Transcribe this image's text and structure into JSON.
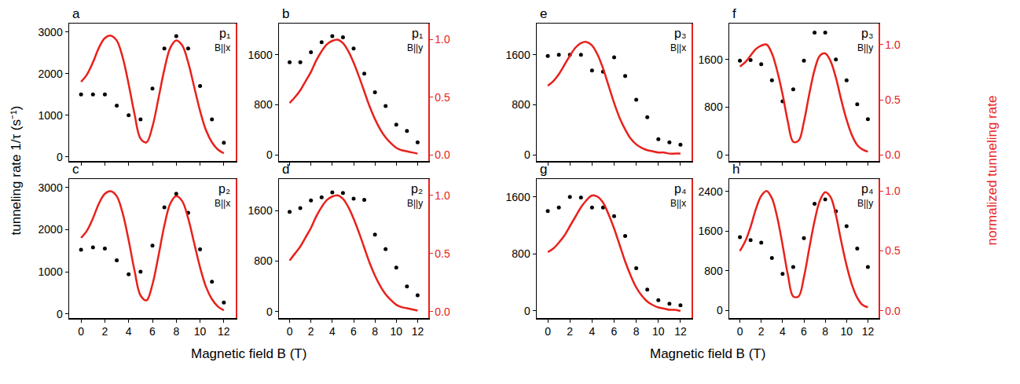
{
  "chart_data": [
    {
      "type": "scatter",
      "panel": "a",
      "title": "p₁",
      "subtitle": "B||x",
      "ylabel": "tunneling rate 1/τ (s⁻¹)",
      "grid": false,
      "tick_labels": "y",
      "xlim": [
        -1,
        13
      ],
      "xticks": [
        0,
        2,
        4,
        6,
        8,
        10,
        12
      ],
      "ylim": [
        -100,
        3200
      ],
      "yticks": [
        0,
        1000,
        2000,
        3000
      ],
      "y2lim": [
        -0.034,
        1.1
      ],
      "y2ticks": [],
      "series": [
        {
          "type": "scatter",
          "marker": "circle",
          "color": "#000000",
          "x": [
            0,
            1,
            2,
            3,
            4,
            5,
            6,
            7,
            8,
            9,
            10,
            11,
            12
          ],
          "values": [
            1500,
            1500,
            1500,
            1230,
            1000,
            900,
            1640,
            2600,
            2900,
            2600,
            1700,
            900,
            340
          ]
        },
        {
          "type": "line",
          "line_style": "solid",
          "color": "#e8211c",
          "axis": "y2",
          "x": [
            0,
            0.5,
            1,
            1.5,
            2,
            2.5,
            3,
            3.5,
            4,
            4.5,
            5,
            5.5,
            6,
            6.5,
            7,
            7.5,
            8,
            8.5,
            9,
            9.5,
            10,
            10.5,
            11,
            11.5,
            12
          ],
          "values": [
            0.62,
            0.68,
            0.78,
            0.9,
            0.98,
            1.0,
            0.96,
            0.82,
            0.6,
            0.35,
            0.15,
            0.12,
            0.25,
            0.48,
            0.72,
            0.9,
            0.96,
            0.92,
            0.78,
            0.58,
            0.38,
            0.22,
            0.12,
            0.06,
            0.03
          ]
        }
      ]
    },
    {
      "type": "scatter",
      "panel": "b",
      "title": "p₁",
      "subtitle": "B||y",
      "grid": false,
      "tick_labels": "y",
      "xlim": [
        -1,
        13
      ],
      "xticks": [
        0,
        2,
        4,
        6,
        8,
        10,
        12
      ],
      "ylim": [
        -100,
        2100
      ],
      "yticks": [
        0,
        800,
        1600
      ],
      "y2lim": [
        -0.054,
        1.14
      ],
      "y2ticks": [
        {
          "value": 0,
          "label": "0.0"
        },
        0.5,
        {
          "value": 1,
          "label": "1.0"
        }
      ],
      "series": [
        {
          "type": "scatter",
          "marker": "circle",
          "color": "#000000",
          "x": [
            0,
            1,
            2,
            3,
            4,
            5,
            6,
            7,
            8,
            9,
            10,
            11,
            12
          ],
          "values": [
            1480,
            1480,
            1640,
            1800,
            1900,
            1880,
            1700,
            1300,
            1000,
            780,
            480,
            380,
            200
          ]
        },
        {
          "type": "line",
          "line_style": "solid",
          "color": "#e8211c",
          "axis": "y2",
          "x": [
            0,
            0.5,
            1,
            1.5,
            2,
            2.5,
            3,
            3.5,
            4,
            4.5,
            5,
            5.5,
            6,
            6.5,
            7,
            7.5,
            8,
            8.5,
            9,
            9.5,
            10,
            10.5,
            11,
            11.5,
            12
          ],
          "values": [
            0.45,
            0.5,
            0.56,
            0.64,
            0.72,
            0.82,
            0.9,
            0.96,
            0.99,
            1.0,
            0.97,
            0.9,
            0.8,
            0.68,
            0.55,
            0.42,
            0.31,
            0.22,
            0.15,
            0.1,
            0.06,
            0.04,
            0.03,
            0.02,
            0.01
          ]
        }
      ]
    },
    {
      "type": "scatter",
      "panel": "c",
      "title": "p₂",
      "subtitle": "B||x",
      "xlabel": "Magnetic field B (T)",
      "grid": false,
      "xlim": [
        -1,
        13
      ],
      "xticks": [
        0,
        2,
        4,
        6,
        8,
        10,
        12
      ],
      "ylim": [
        -100,
        3200
      ],
      "yticks": [
        0,
        1000,
        2000,
        3000
      ],
      "y2lim": [
        -0.034,
        1.1
      ],
      "y2ticks": [],
      "series": [
        {
          "type": "scatter",
          "marker": "circle",
          "color": "#000000",
          "x": [
            0,
            1,
            2,
            3,
            4,
            5,
            6,
            7,
            8,
            9,
            10,
            11,
            12
          ],
          "values": [
            1520,
            1580,
            1550,
            1270,
            940,
            1000,
            1620,
            2530,
            2850,
            2400,
            1530,
            760,
            270
          ]
        },
        {
          "type": "line",
          "line_style": "solid",
          "color": "#e8211c",
          "axis": "y2",
          "x": [
            0,
            0.5,
            1,
            1.5,
            2,
            2.5,
            3,
            3.5,
            4,
            4.5,
            5,
            5.5,
            6,
            6.5,
            7,
            7.5,
            8,
            8.5,
            9,
            9.5,
            10,
            10.5,
            11,
            11.5,
            12
          ],
          "values": [
            0.62,
            0.68,
            0.78,
            0.9,
            0.98,
            1.0,
            0.96,
            0.82,
            0.6,
            0.35,
            0.15,
            0.11,
            0.24,
            0.47,
            0.72,
            0.9,
            0.96,
            0.92,
            0.78,
            0.58,
            0.38,
            0.22,
            0.12,
            0.06,
            0.03
          ]
        }
      ]
    },
    {
      "type": "scatter",
      "panel": "d",
      "title": "p₂",
      "subtitle": "B||y",
      "grid": false,
      "xlim": [
        -1,
        13
      ],
      "xticks": [
        0,
        2,
        4,
        6,
        8,
        10,
        12
      ],
      "ylim": [
        -100,
        2100
      ],
      "yticks": [
        0,
        800,
        1600
      ],
      "y2lim": [
        -0.054,
        1.14
      ],
      "y2ticks": [
        {
          "value": 0,
          "label": "0.0"
        },
        0.5,
        {
          "value": 1,
          "label": "1.0"
        }
      ],
      "series": [
        {
          "type": "scatter",
          "marker": "circle",
          "color": "#000000",
          "x": [
            0,
            1,
            2,
            3,
            4,
            5,
            6,
            7,
            8,
            9,
            10,
            11,
            12
          ],
          "values": [
            1580,
            1640,
            1760,
            1810,
            1890,
            1880,
            1790,
            1770,
            1220,
            990,
            700,
            400,
            260
          ]
        },
        {
          "type": "line",
          "line_style": "solid",
          "color": "#e8211c",
          "axis": "y2",
          "x": [
            0,
            0.5,
            1,
            1.5,
            2,
            2.5,
            3,
            3.5,
            4,
            4.5,
            5,
            5.5,
            6,
            6.5,
            7,
            7.5,
            8,
            8.5,
            9,
            9.5,
            10,
            10.5,
            11,
            11.5,
            12
          ],
          "values": [
            0.44,
            0.5,
            0.56,
            0.64,
            0.72,
            0.82,
            0.9,
            0.96,
            0.99,
            1.0,
            0.97,
            0.9,
            0.8,
            0.68,
            0.55,
            0.42,
            0.31,
            0.22,
            0.15,
            0.1,
            0.06,
            0.04,
            0.03,
            0.02,
            0.01
          ]
        }
      ]
    },
    {
      "type": "scatter",
      "panel": "e",
      "title": "p₃",
      "subtitle": "B||x",
      "grid": false,
      "tick_labels": "y",
      "xlim": [
        -1,
        13
      ],
      "xticks": [
        0,
        2,
        4,
        6,
        8,
        10,
        12
      ],
      "ylim": [
        -100,
        2100
      ],
      "yticks": [
        0,
        800,
        1600
      ],
      "y2lim": [
        -0.054,
        1.14
      ],
      "y2ticks": [],
      "series": [
        {
          "type": "scatter",
          "marker": "circle",
          "color": "#000000",
          "x": [
            0,
            1,
            2,
            3,
            4,
            5,
            6,
            7,
            8,
            9,
            10,
            11,
            12
          ],
          "values": [
            1580,
            1600,
            1600,
            1600,
            1350,
            1330,
            1560,
            1260,
            880,
            600,
            250,
            200,
            160
          ]
        },
        {
          "type": "line",
          "line_style": "solid",
          "color": "#e8211c",
          "axis": "y2",
          "x": [
            0,
            0.5,
            1,
            1.5,
            2,
            2.5,
            3,
            3.5,
            4,
            4.5,
            5,
            5.5,
            6,
            6.5,
            7,
            7.5,
            8,
            8.5,
            9,
            9.5,
            10,
            10.5,
            11,
            11.5,
            12
          ],
          "values": [
            0.6,
            0.64,
            0.7,
            0.78,
            0.86,
            0.93,
            0.97,
            0.98,
            0.95,
            0.87,
            0.75,
            0.6,
            0.45,
            0.32,
            0.22,
            0.14,
            0.09,
            0.06,
            0.04,
            0.03,
            0.02,
            0.02,
            0.01,
            0.01,
            0.01
          ]
        }
      ]
    },
    {
      "type": "scatter",
      "panel": "f",
      "title": "p₃",
      "subtitle": "B||y",
      "grid": false,
      "tick_labels": "y",
      "xlim": [
        -1,
        13
      ],
      "xticks": [
        0,
        2,
        4,
        6,
        8,
        10,
        12
      ],
      "ylim": [
        -100,
        2200
      ],
      "yticks": [
        0,
        800,
        1600
      ],
      "y2lim": [
        -0.054,
        1.19
      ],
      "y2ticks": [
        {
          "value": 0,
          "label": "0.0"
        },
        0.5,
        {
          "value": 1,
          "label": "1.0"
        }
      ],
      "series": [
        {
          "type": "scatter",
          "marker": "circle",
          "color": "#000000",
          "x": [
            0,
            1,
            2,
            3,
            4,
            5,
            6,
            7,
            8,
            9,
            10,
            11,
            12
          ],
          "values": [
            1580,
            1590,
            1520,
            1250,
            900,
            1100,
            1580,
            2050,
            2050,
            1600,
            1250,
            850,
            600
          ]
        },
        {
          "type": "line",
          "line_style": "solid",
          "color": "#e8211c",
          "axis": "y2",
          "x": [
            0,
            0.5,
            1,
            1.5,
            2,
            2.5,
            3,
            3.5,
            4,
            4.5,
            5,
            5.5,
            6,
            6.5,
            7,
            7.5,
            8,
            8.5,
            9,
            9.5,
            10,
            10.5,
            11,
            11.5,
            12
          ],
          "values": [
            0.8,
            0.84,
            0.9,
            0.96,
            0.99,
            1.0,
            0.92,
            0.76,
            0.55,
            0.3,
            0.12,
            0.13,
            0.3,
            0.55,
            0.77,
            0.9,
            0.92,
            0.85,
            0.7,
            0.5,
            0.32,
            0.18,
            0.09,
            0.05,
            0.03
          ]
        }
      ]
    },
    {
      "type": "scatter",
      "panel": "g",
      "title": "p₄",
      "subtitle": "B||x",
      "xlabel": "Magnetic field B (T)",
      "grid": false,
      "xlim": [
        -1,
        13
      ],
      "xticks": [
        0,
        2,
        4,
        6,
        8,
        10,
        12
      ],
      "ylim": [
        -100,
        1850
      ],
      "yticks": [
        0,
        800,
        1600
      ],
      "y2lim": [
        -0.06,
        1.12
      ],
      "y2ticks": [],
      "series": [
        {
          "type": "scatter",
          "marker": "circle",
          "color": "#000000",
          "x": [
            0,
            1,
            2,
            3,
            4,
            5,
            6,
            7,
            8,
            9,
            10,
            11,
            12
          ],
          "values": [
            1400,
            1450,
            1600,
            1590,
            1450,
            1450,
            1330,
            1050,
            600,
            300,
            150,
            100,
            80
          ]
        },
        {
          "type": "line",
          "line_style": "solid",
          "color": "#e8211c",
          "axis": "y2",
          "x": [
            0,
            0.5,
            1,
            1.5,
            2,
            2.5,
            3,
            3.5,
            4,
            4.5,
            5,
            5.5,
            6,
            6.5,
            7,
            7.5,
            8,
            8.5,
            9,
            9.5,
            10,
            10.5,
            11,
            11.5,
            12
          ],
          "values": [
            0.5,
            0.53,
            0.58,
            0.64,
            0.72,
            0.8,
            0.88,
            0.94,
            0.98,
            0.97,
            0.92,
            0.82,
            0.7,
            0.56,
            0.42,
            0.3,
            0.2,
            0.13,
            0.08,
            0.05,
            0.03,
            0.02,
            0.01,
            0.01,
            0
          ]
        }
      ]
    },
    {
      "type": "scatter",
      "panel": "h",
      "title": "p₄",
      "subtitle": "B||y",
      "y2label": "normalized tunneling rate",
      "grid": false,
      "xlim": [
        -1,
        13
      ],
      "xticks": [
        0,
        2,
        4,
        6,
        8,
        10,
        12
      ],
      "ylim": [
        -150,
        2650
      ],
      "yticks": [
        0,
        800,
        1600,
        2400
      ],
      "y2lim": [
        -0.06,
        1.1
      ],
      "y2ticks": [
        {
          "value": 0,
          "label": "0.0"
        },
        0.5,
        {
          "value": 1,
          "label": "1.0"
        }
      ],
      "series": [
        {
          "type": "scatter",
          "marker": "circle",
          "color": "#000000",
          "x": [
            0,
            1,
            2,
            3,
            4,
            5,
            6,
            7,
            8,
            9,
            10,
            11,
            12
          ],
          "values": [
            1480,
            1420,
            1370,
            1060,
            740,
            880,
            1460,
            2150,
            2240,
            2000,
            1700,
            1250,
            880
          ]
        },
        {
          "type": "line",
          "line_style": "solid",
          "color": "#e8211c",
          "axis": "y2",
          "x": [
            0,
            0.5,
            1,
            1.5,
            2,
            2.5,
            3,
            3.5,
            4,
            4.5,
            5,
            5.5,
            6,
            6.5,
            7,
            7.5,
            8,
            8.5,
            9,
            9.5,
            10,
            10.5,
            11,
            11.5,
            12
          ],
          "values": [
            0.5,
            0.58,
            0.7,
            0.85,
            0.96,
            1.0,
            0.94,
            0.78,
            0.55,
            0.3,
            0.12,
            0.12,
            0.28,
            0.52,
            0.75,
            0.92,
            0.99,
            0.95,
            0.8,
            0.58,
            0.38,
            0.22,
            0.11,
            0.05,
            0.03
          ]
        }
      ]
    }
  ]
}
